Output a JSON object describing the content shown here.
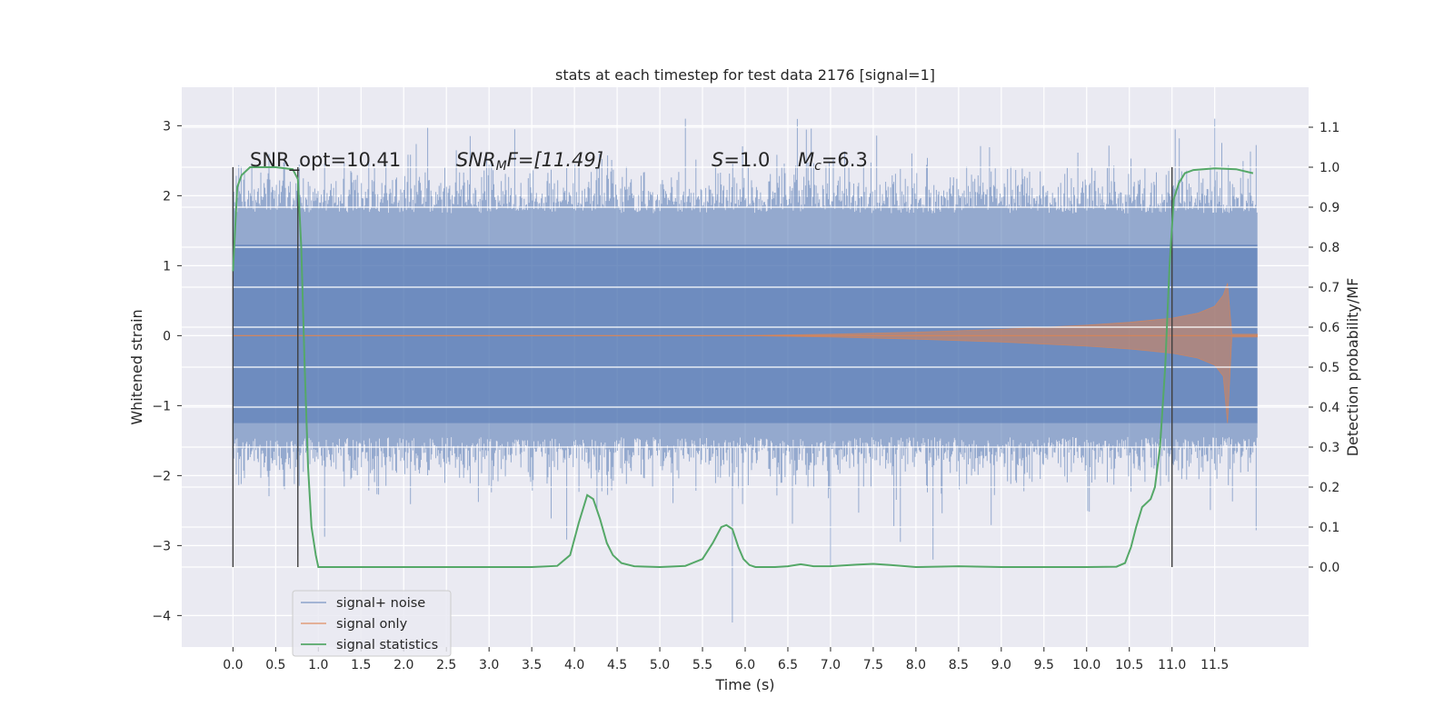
{
  "chart_data": {
    "type": "line",
    "title": "stats at each timestep for test data 2176 [signal=1]",
    "xlabel": "Time (s)",
    "ylabel": "Whitened strain",
    "ylabel_right": "Detection probability/MF",
    "xlim": [
      -0.6,
      12.6
    ],
    "ylim": [
      -4.45,
      3.55
    ],
    "ylim_right": [
      -0.2,
      1.2
    ],
    "x_ticks": [
      0.0,
      0.5,
      1.0,
      1.5,
      2.0,
      2.5,
      3.0,
      3.5,
      4.0,
      4.5,
      5.0,
      5.5,
      6.0,
      6.5,
      7.0,
      7.5,
      8.0,
      8.5,
      9.0,
      9.5,
      10.0,
      10.5,
      11.0,
      11.5
    ],
    "x_tick_labels": [
      "0.0",
      "0.5",
      "1.0",
      "1.5",
      "2.0",
      "2.5",
      "3.0",
      "3.5",
      "4.0",
      "4.5",
      "5.0",
      "5.5",
      "6.0",
      "6.5",
      "7.0",
      "7.5",
      "8.0",
      "8.5",
      "9.0",
      "9.5",
      "10.0",
      "10.5",
      "11.0",
      "11.5"
    ],
    "y_ticks": [
      3,
      2,
      1,
      0,
      -1,
      -2,
      -3,
      -4
    ],
    "y_tick_labels": [
      "3",
      "2",
      "1",
      "0",
      "−1",
      "−2",
      "−3",
      "−4"
    ],
    "y_right_ticks": [
      1.1,
      1.0,
      0.9,
      0.8,
      0.7,
      0.6,
      0.5,
      0.4,
      0.3,
      0.2,
      0.1,
      0.0
    ],
    "y_right_tick_labels": [
      "1.1",
      "1.0",
      "0.9",
      "0.8",
      "0.7",
      "0.6",
      "0.5",
      "0.4",
      "0.3",
      "0.2",
      "0.1",
      "0.0"
    ],
    "grid": true,
    "legend_position": "lower-left",
    "annotations": {
      "snr_opt": "SNR_opt=10.41",
      "snr_mf_base": "SNR",
      "snr_mf_sub": "M",
      "snr_mf_tail": "F=[11.49]",
      "s_var": "S",
      "s_val": "=1.0",
      "mc_var": "M",
      "mc_sub": "c",
      "mc_val": "=6.3"
    },
    "series": [
      {
        "name": "signal+ noise",
        "color": "#4c72b0",
        "axis": "left",
        "description_range": [
          0.0,
          12.0
        ],
        "typical_envelope": [
          -1.8,
          2.1
        ],
        "extreme_min": -4.1,
        "extreme_max": 3.1
      },
      {
        "name": "signal only",
        "color": "#dd8452",
        "axis": "left",
        "x": [
          0.0,
          6.0,
          7.0,
          8.0,
          9.0,
          9.5,
          10.0,
          10.5,
          11.0,
          11.3,
          11.5,
          11.6,
          11.65,
          11.7,
          12.0
        ],
        "amplitude": [
          0.0,
          0.0,
          0.02,
          0.05,
          0.09,
          0.12,
          0.15,
          0.19,
          0.25,
          0.32,
          0.42,
          0.58,
          0.75,
          0.02,
          0.02
        ]
      },
      {
        "name": "signal statistics",
        "color": "#55a868",
        "axis": "right",
        "x": [
          0.0,
          0.05,
          0.1,
          0.15,
          0.2,
          0.3,
          0.5,
          0.7,
          0.76,
          0.8,
          0.84,
          0.88,
          0.92,
          0.97,
          1.0,
          1.1,
          1.5,
          2.0,
          2.5,
          3.0,
          3.5,
          3.8,
          3.95,
          4.05,
          4.15,
          4.22,
          4.3,
          4.38,
          4.45,
          4.55,
          4.7,
          5.0,
          5.3,
          5.5,
          5.62,
          5.72,
          5.78,
          5.85,
          5.92,
          5.98,
          6.05,
          6.12,
          6.2,
          6.35,
          6.5,
          6.65,
          6.8,
          7.0,
          7.3,
          7.5,
          7.7,
          8.0,
          8.5,
          9.0,
          9.5,
          10.0,
          10.35,
          10.45,
          10.52,
          10.58,
          10.65,
          10.75,
          10.8,
          10.86,
          10.92,
          10.97,
          11.02,
          11.08,
          11.15,
          11.25,
          11.5,
          11.75,
          11.95
        ],
        "values": [
          0.74,
          0.95,
          0.98,
          0.99,
          1.0,
          1.0,
          1.0,
          0.995,
          0.97,
          0.8,
          0.5,
          0.25,
          0.1,
          0.03,
          0.0,
          0.0,
          0.0,
          0.0,
          0.0,
          0.0,
          0.0,
          0.003,
          0.03,
          0.11,
          0.18,
          0.17,
          0.12,
          0.06,
          0.03,
          0.01,
          0.002,
          0.0,
          0.003,
          0.02,
          0.06,
          0.1,
          0.105,
          0.095,
          0.05,
          0.02,
          0.005,
          0.0,
          0.0,
          0.0,
          0.002,
          0.007,
          0.002,
          0.002,
          0.006,
          0.008,
          0.005,
          0.0,
          0.002,
          0.0,
          0.0,
          0.0,
          0.001,
          0.01,
          0.05,
          0.1,
          0.15,
          0.17,
          0.2,
          0.3,
          0.5,
          0.75,
          0.92,
          0.96,
          0.985,
          0.993,
          0.997,
          0.995,
          0.985
        ]
      }
    ],
    "vertical_markers": [
      {
        "x": 0.0,
        "y_right_range": [
          0.0,
          1.0
        ]
      },
      {
        "x": 0.76,
        "y_right_range": [
          0.0,
          1.0
        ]
      },
      {
        "x": 11.0,
        "y_right_range": [
          0.0,
          1.0
        ]
      }
    ]
  }
}
